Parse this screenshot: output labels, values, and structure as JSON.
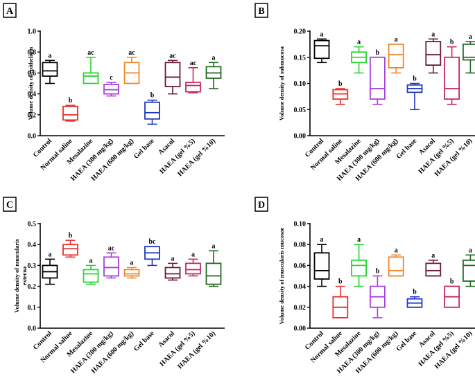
{
  "colors": [
    "#000000",
    "#e8302a",
    "#27d62f",
    "#a93fdc",
    "#f2862b",
    "#1f38c2",
    "#6b1a3a",
    "#c8275f",
    "#1f6b1f"
  ],
  "chart_data": [
    {
      "type": "box",
      "panel_label": "A",
      "ylabel": "Volume density of epithelium",
      "ylim": [
        0.0,
        1.0
      ],
      "yticks": [
        "0.0",
        "0.2",
        "0.4",
        "0.6",
        "0.8",
        "1.0"
      ],
      "categories": [
        "Control",
        "Normal saline",
        "Mesalazine",
        "HAEA (300 mg/kg)",
        "HAEA (600 mg/kg)",
        "Gel base",
        "Asacol",
        "HAEA (gel %5)",
        "HAEA (gel %10)"
      ],
      "boxes": [
        {
          "min": 0.5,
          "q1": 0.57,
          "median": 0.62,
          "q3": 0.7,
          "max": 0.72,
          "label": "a"
        },
        {
          "min": 0.14,
          "q1": 0.15,
          "median": 0.2,
          "q3": 0.28,
          "max": 0.29,
          "label": "b"
        },
        {
          "min": 0.5,
          "q1": 0.5,
          "median": 0.57,
          "q3": 0.6,
          "max": 0.75,
          "label": "ac"
        },
        {
          "min": 0.38,
          "q1": 0.4,
          "median": 0.44,
          "q3": 0.49,
          "max": 0.51,
          "label": "c"
        },
        {
          "min": 0.5,
          "q1": 0.5,
          "median": 0.6,
          "q3": 0.7,
          "max": 0.75,
          "label": "ac"
        },
        {
          "min": 0.11,
          "q1": 0.16,
          "median": 0.22,
          "q3": 0.32,
          "max": 0.34,
          "label": "b"
        },
        {
          "min": 0.4,
          "q1": 0.47,
          "median": 0.56,
          "q3": 0.7,
          "max": 0.72,
          "label": "ac"
        },
        {
          "min": 0.41,
          "q1": 0.42,
          "median": 0.48,
          "q3": 0.51,
          "max": 0.65,
          "label": "ac"
        },
        {
          "min": 0.45,
          "q1": 0.55,
          "median": 0.6,
          "q3": 0.66,
          "max": 0.7,
          "label": "a"
        }
      ]
    },
    {
      "type": "box",
      "panel_label": "B",
      "ylabel": "Volume density of submucosa",
      "ylim": [
        0.0,
        0.2
      ],
      "yticks": [
        "0.00",
        "0.05",
        "0.10",
        "0.15",
        "0.20"
      ],
      "categories": [
        "Control",
        "Normal saline",
        "Mesalazine",
        "HAEA (300 mg/kg)",
        "HAEA (600 mg/kg)",
        "Gel base",
        "Asacol",
        "HAEA (gel %5)",
        "HAEA (gel %10)"
      ],
      "boxes": [
        {
          "min": 0.14,
          "q1": 0.148,
          "median": 0.172,
          "q3": 0.182,
          "max": 0.185,
          "label": "a"
        },
        {
          "min": 0.06,
          "q1": 0.07,
          "median": 0.08,
          "q3": 0.088,
          "max": 0.09,
          "label": "b"
        },
        {
          "min": 0.12,
          "q1": 0.14,
          "median": 0.15,
          "q3": 0.16,
          "max": 0.17,
          "label": "a"
        },
        {
          "min": 0.06,
          "q1": 0.07,
          "median": 0.09,
          "q3": 0.15,
          "max": 0.15,
          "label": "b"
        },
        {
          "min": 0.12,
          "q1": 0.13,
          "median": 0.155,
          "q3": 0.175,
          "max": 0.175,
          "label": "a"
        },
        {
          "min": 0.05,
          "q1": 0.083,
          "median": 0.09,
          "q3": 0.097,
          "max": 0.1,
          "label": "b"
        },
        {
          "min": 0.12,
          "q1": 0.135,
          "median": 0.155,
          "q3": 0.18,
          "max": 0.185,
          "label": "a"
        },
        {
          "min": 0.06,
          "q1": 0.07,
          "median": 0.09,
          "q3": 0.15,
          "max": 0.17,
          "label": "b"
        },
        {
          "min": 0.12,
          "q1": 0.145,
          "median": 0.15,
          "q3": 0.175,
          "max": 0.18,
          "label": "a"
        }
      ]
    },
    {
      "type": "box",
      "panel_label": "C",
      "ylabel": "Volume density of muscularis externa",
      "ylim": [
        0.0,
        0.5
      ],
      "yticks": [
        "0.0",
        "0.1",
        "0.2",
        "0.3",
        "0.4",
        "0.5"
      ],
      "categories": [
        "Control",
        "Normal saline",
        "Mesalazine",
        "HAEA (300 mg/kg)",
        "HAEA (600 mg/kg)",
        "Gel base",
        "Asacol",
        "HAEA (gel %5)",
        "HAEA (gel %10)"
      ],
      "boxes": [
        {
          "min": 0.21,
          "q1": 0.24,
          "median": 0.27,
          "q3": 0.3,
          "max": 0.33,
          "label": "a"
        },
        {
          "min": 0.34,
          "q1": 0.35,
          "median": 0.38,
          "q3": 0.4,
          "max": 0.42,
          "label": "b"
        },
        {
          "min": 0.21,
          "q1": 0.22,
          "median": 0.26,
          "q3": 0.28,
          "max": 0.3,
          "label": "a"
        },
        {
          "min": 0.24,
          "q1": 0.25,
          "median": 0.29,
          "q3": 0.34,
          "max": 0.36,
          "label": "ac"
        },
        {
          "min": 0.24,
          "q1": 0.25,
          "median": 0.26,
          "q3": 0.28,
          "max": 0.29,
          "label": "a"
        },
        {
          "min": 0.3,
          "q1": 0.33,
          "median": 0.36,
          "q3": 0.39,
          "max": 0.39,
          "label": "bc"
        },
        {
          "min": 0.23,
          "q1": 0.24,
          "median": 0.26,
          "q3": 0.29,
          "max": 0.31,
          "label": "a"
        },
        {
          "min": 0.25,
          "q1": 0.26,
          "median": 0.28,
          "q3": 0.31,
          "max": 0.33,
          "label": "a"
        },
        {
          "min": 0.2,
          "q1": 0.21,
          "median": 0.25,
          "q3": 0.31,
          "max": 0.37,
          "label": "a"
        }
      ]
    },
    {
      "type": "box",
      "panel_label": "D",
      "ylabel": "Volume density of muscularis mucosae",
      "ylim": [
        0.0,
        0.1
      ],
      "yticks": [
        "0.00",
        "0.02",
        "0.04",
        "0.06",
        "0.08",
        "0.10"
      ],
      "categories": [
        "Control",
        "Normal saline",
        "Mesalazine",
        "HAEA (300 mg/kg)",
        "HAEA (600 mg/kg)",
        "Gel base",
        "Asacol",
        "HAEA (gel %5)",
        "HAEA (gel %10)"
      ],
      "boxes": [
        {
          "min": 0.04,
          "q1": 0.047,
          "median": 0.055,
          "q3": 0.072,
          "max": 0.08,
          "label": "a"
        },
        {
          "min": 0.01,
          "q1": 0.01,
          "median": 0.02,
          "q3": 0.03,
          "max": 0.04,
          "label": "b"
        },
        {
          "min": 0.04,
          "q1": 0.05,
          "median": 0.06,
          "q3": 0.065,
          "max": 0.08,
          "label": "a"
        },
        {
          "min": 0.01,
          "q1": 0.02,
          "median": 0.03,
          "q3": 0.04,
          "max": 0.05,
          "label": "b"
        },
        {
          "min": 0.05,
          "q1": 0.05,
          "median": 0.055,
          "q3": 0.068,
          "max": 0.07,
          "label": "a"
        },
        {
          "min": 0.02,
          "q1": 0.02,
          "median": 0.024,
          "q3": 0.028,
          "max": 0.03,
          "label": "b"
        },
        {
          "min": 0.05,
          "q1": 0.05,
          "median": 0.055,
          "q3": 0.062,
          "max": 0.065,
          "label": "a"
        },
        {
          "min": 0.02,
          "q1": 0.02,
          "median": 0.03,
          "q3": 0.04,
          "max": 0.04,
          "label": "b"
        },
        {
          "min": 0.04,
          "q1": 0.045,
          "median": 0.06,
          "q3": 0.065,
          "max": 0.07,
          "label": "a"
        }
      ]
    }
  ]
}
